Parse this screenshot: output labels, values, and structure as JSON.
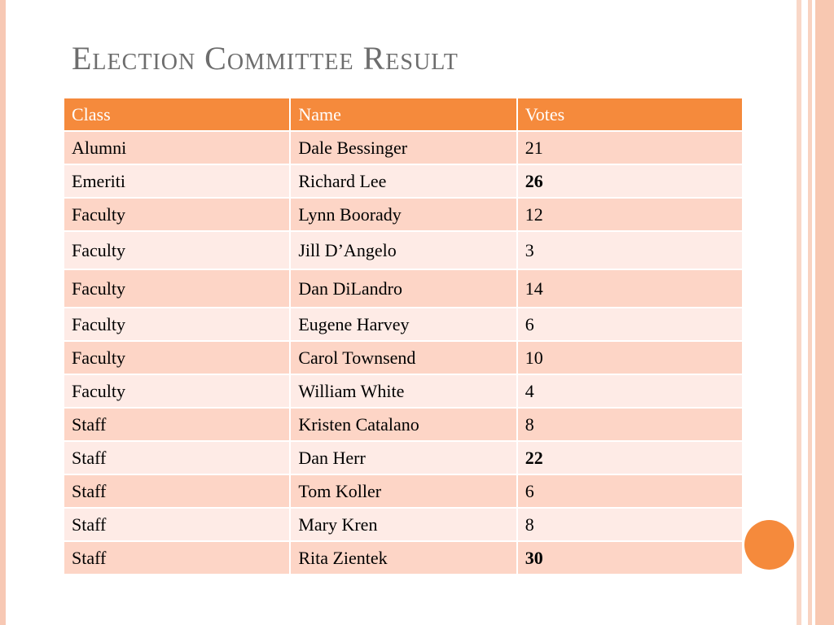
{
  "title": "Election Committee Result",
  "colors": {
    "accent": "#f58a3c",
    "row_odd": "#fdd5c6",
    "row_even": "#feebe6",
    "title": "#6d6d6d"
  },
  "table": {
    "headers": [
      "Class",
      "Name",
      "Votes"
    ],
    "rows": [
      {
        "class": "Alumni",
        "name": "Dale Bessinger",
        "votes": "21"
      },
      {
        "class": "Emeriti",
        "name": "Richard Lee",
        "votes": "26"
      },
      {
        "class": "Faculty",
        "name": "Lynn Boorady",
        "votes": "12"
      },
      {
        "class": "Faculty",
        "name": "Jill D’Angelo",
        "votes": "3"
      },
      {
        "class": "Faculty",
        "name": "Dan DiLandro",
        "votes": "14"
      },
      {
        "class": "Faculty",
        "name": "Eugene Harvey",
        "votes": "6"
      },
      {
        "class": "Faculty",
        "name": "Carol Townsend",
        "votes": "10"
      },
      {
        "class": "Faculty",
        "name": "William White",
        "votes": "4"
      },
      {
        "class": "Staff",
        "name": "Kristen Catalano",
        "votes": "8"
      },
      {
        "class": "Staff",
        "name": "Dan Herr",
        "votes": "22"
      },
      {
        "class": "Staff",
        "name": "Tom Koller",
        "votes": "6"
      },
      {
        "class": "Staff",
        "name": "Mary Kren",
        "votes": "8"
      },
      {
        "class": "Staff",
        "name": "Rita Zientek",
        "votes": "30"
      }
    ]
  }
}
